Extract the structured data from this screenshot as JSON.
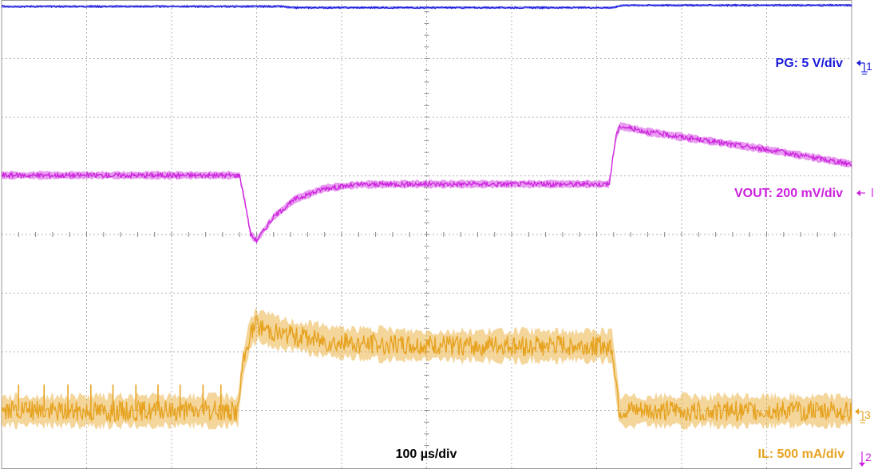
{
  "chart_data": {
    "type": "line",
    "title": "",
    "grid": true,
    "x_unit": "µs",
    "timebase": "100 µs/div",
    "x_range": [
      0,
      1000
    ],
    "y_unit": "div",
    "y_range": [
      0,
      8
    ],
    "series": [
      {
        "name": "PG",
        "scale_label": "PG: 5 V/div",
        "color": "#1a1adc",
        "x": [
          0,
          330,
          340,
          720,
          730,
          1000
        ],
        "y": [
          7.89,
          7.89,
          7.87,
          7.87,
          7.91,
          7.91
        ]
      },
      {
        "name": "VOUT",
        "scale_label": "VOUT: 200 mV/div",
        "color": "#cc22dd",
        "x": [
          0,
          280,
          287,
          293,
          300,
          320,
          345,
          380,
          420,
          470,
          540,
          600,
          715,
          718,
          723,
          728,
          760,
          830,
          900,
          960,
          1000
        ],
        "y": [
          5.01,
          5.01,
          4.5,
          4.0,
          3.9,
          4.3,
          4.6,
          4.79,
          4.85,
          4.86,
          4.86,
          4.86,
          4.86,
          5.2,
          5.7,
          5.85,
          5.75,
          5.6,
          5.45,
          5.3,
          5.2
        ],
        "band": 0.06
      },
      {
        "name": "IL",
        "scale_label": "IL: 500 mA/div",
        "color": "#e6a21e",
        "x": [
          0,
          278,
          283,
          292,
          300,
          330,
          400,
          500,
          600,
          715,
          718,
          722,
          727,
          1000
        ],
        "y": [
          0.99,
          0.99,
          1.7,
          2.3,
          2.45,
          2.3,
          2.15,
          2.1,
          2.1,
          2.1,
          2.1,
          1.6,
          0.99,
          0.99
        ],
        "band": 0.25,
        "spikes_at": [
          20,
          50,
          78,
          105,
          131,
          158,
          184,
          210,
          237,
          258
        ],
        "spike_height": 0.45
      }
    ]
  },
  "labels": {
    "timebase": "100 µs/div",
    "pg_scale": "PG: 5 V/div",
    "vout_scale": "VOUT: 200 mV/div",
    "il_scale": "IL: 500 mA/div",
    "il_tag": "IL"
  },
  "channel_markers": {
    "ch1": "1",
    "ch2": "2",
    "ch3": "3"
  }
}
